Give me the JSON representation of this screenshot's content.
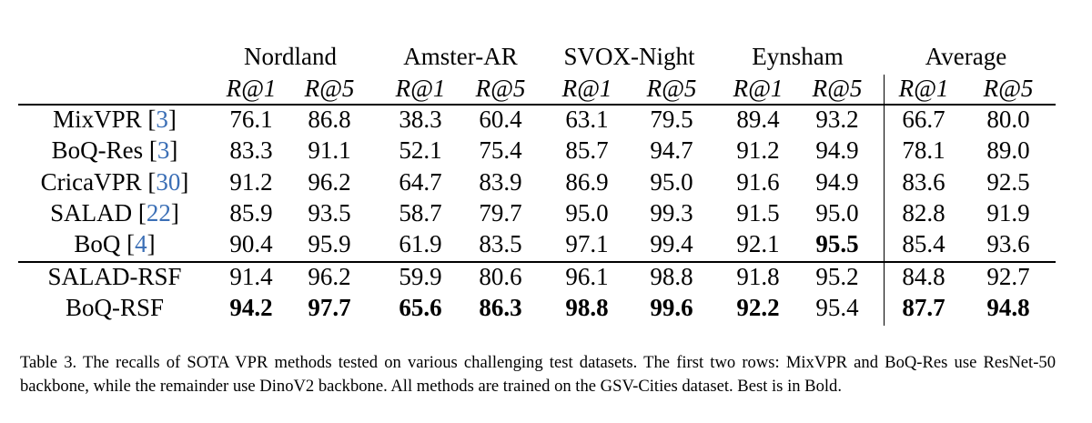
{
  "table": {
    "groups": [
      "Nordland",
      "Amster-AR",
      "SVOX-Night",
      "Eynsham",
      "Average"
    ],
    "subheaders": [
      "R@1",
      "R@5",
      "R@1",
      "R@5",
      "R@1",
      "R@5",
      "R@1",
      "R@5",
      "R@1",
      "R@5"
    ],
    "rows": [
      {
        "method": "MixVPR",
        "cite": "3",
        "values": [
          "76.1",
          "86.8",
          "38.3",
          "60.4",
          "63.1",
          "79.5",
          "89.4",
          "93.2",
          "66.7",
          "80.0"
        ],
        "bold": []
      },
      {
        "method": "BoQ-Res",
        "cite": "3",
        "values": [
          "83.3",
          "91.1",
          "52.1",
          "75.4",
          "85.7",
          "94.7",
          "91.2",
          "94.9",
          "78.1",
          "89.0"
        ],
        "bold": []
      },
      {
        "method": "CricaVPR",
        "cite": "30",
        "values": [
          "91.2",
          "96.2",
          "64.7",
          "83.9",
          "86.9",
          "95.0",
          "91.6",
          "94.9",
          "83.6",
          "92.5"
        ],
        "bold": []
      },
      {
        "method": "SALAD",
        "cite": "22",
        "values": [
          "85.9",
          "93.5",
          "58.7",
          "79.7",
          "95.0",
          "99.3",
          "91.5",
          "95.0",
          "82.8",
          "91.9"
        ],
        "bold": []
      },
      {
        "method": "BoQ",
        "cite": "4",
        "values": [
          "90.4",
          "95.9",
          "61.9",
          "83.5",
          "97.1",
          "99.4",
          "92.1",
          "95.5",
          "85.4",
          "93.6"
        ],
        "bold": [
          7
        ]
      },
      {
        "method": "SALAD-RSF",
        "values": [
          "91.4",
          "96.2",
          "59.9",
          "80.6",
          "96.1",
          "98.8",
          "91.8",
          "95.2",
          "84.8",
          "92.7"
        ],
        "bold": []
      },
      {
        "method": "BoQ-RSF",
        "values": [
          "94.2",
          "97.7",
          "65.6",
          "86.3",
          "98.8",
          "99.6",
          "92.2",
          "95.4",
          "87.7",
          "94.8"
        ],
        "bold": [
          0,
          1,
          2,
          3,
          4,
          5,
          6,
          8,
          9
        ]
      }
    ],
    "caption_label": "Table 3.",
    "caption": "The recalls of SOTA VPR methods tested on various challenging test datasets. The first two rows: MixVPR and BoQ-Res use ResNet-50 backbone, while the remainder use DinoV2 backbone. All methods are trained on the GSV-Cities dataset. Best is in Bold."
  }
}
